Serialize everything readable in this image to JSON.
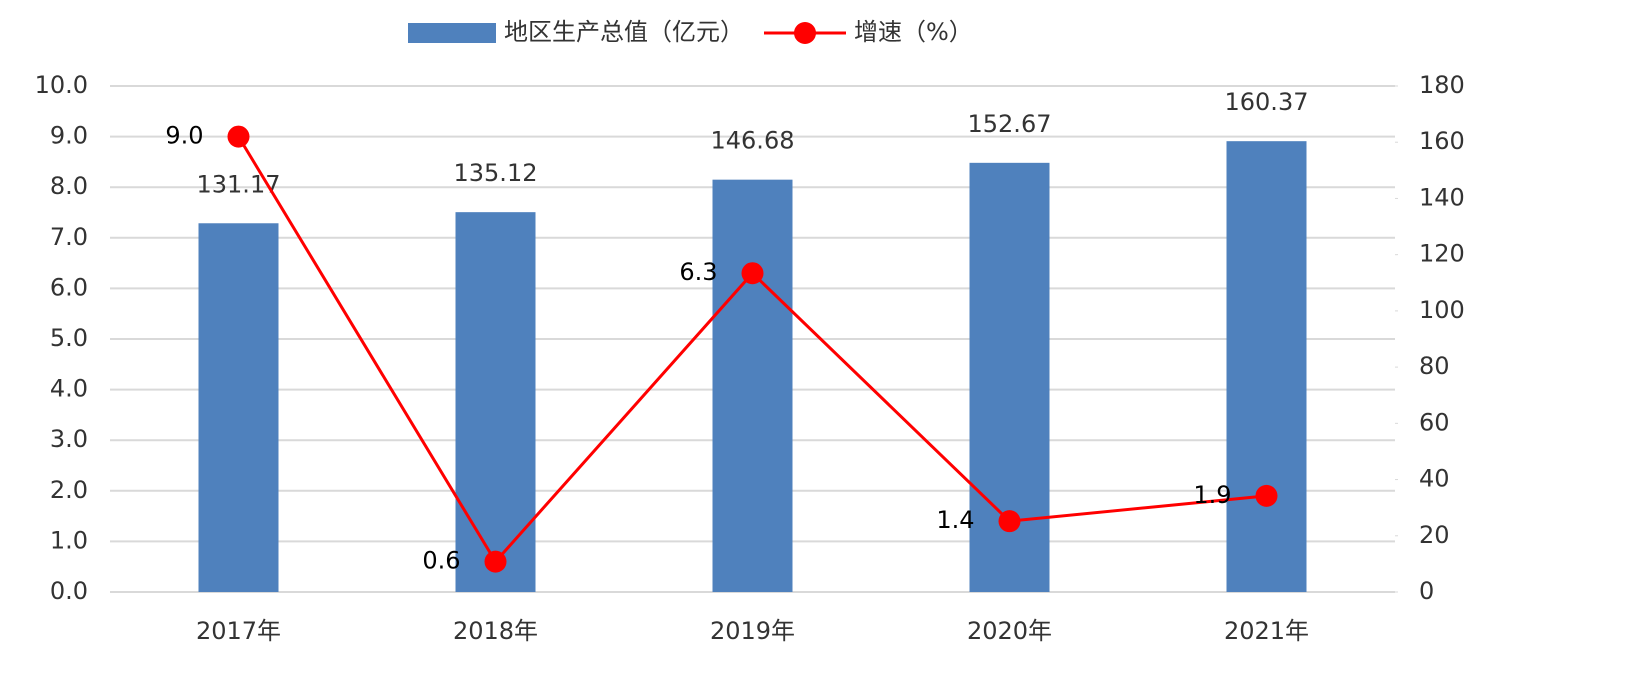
{
  "chart_data": {
    "type": "bar",
    "categories": [
      "2017年",
      "2018年",
      "2019年",
      "2020年",
      "2021年"
    ],
    "series": [
      {
        "name": "地区生产总值（亿元）",
        "type": "bar",
        "axis": "y2",
        "color": "#4f81bd",
        "values": [
          131.17,
          135.12,
          146.68,
          152.67,
          160.37
        ]
      },
      {
        "name": "增速（%）",
        "type": "line",
        "color": "#ff0000",
        "values": [
          9.0,
          0.6,
          6.3,
          1.4,
          1.9
        ],
        "value_labels": [
          "9.0",
          "0.6",
          "6.3",
          "1.4",
          "1.9"
        ]
      }
    ],
    "ylim": [
      0,
      10
    ],
    "yticks": [
      {
        "value": 0,
        "label": "0.0"
      },
      {
        "value": 1,
        "label": "1.0"
      },
      {
        "value": 2,
        "label": "2.0"
      },
      {
        "value": 3,
        "label": "3.0"
      },
      {
        "value": 4,
        "label": "4.0"
      },
      {
        "value": 5,
        "label": "5.0"
      },
      {
        "value": 6,
        "label": "6.0"
      },
      {
        "value": 7,
        "label": "7.0"
      },
      {
        "value": 8,
        "label": "8.0"
      },
      {
        "value": 9,
        "label": "9.0"
      },
      {
        "value": 10,
        "label": "10.0"
      }
    ],
    "y2lim": [
      0,
      180
    ],
    "y2ticks": [
      0,
      20,
      40,
      60,
      80,
      100,
      120,
      140,
      160,
      180
    ],
    "grid": true,
    "legend": "top"
  }
}
